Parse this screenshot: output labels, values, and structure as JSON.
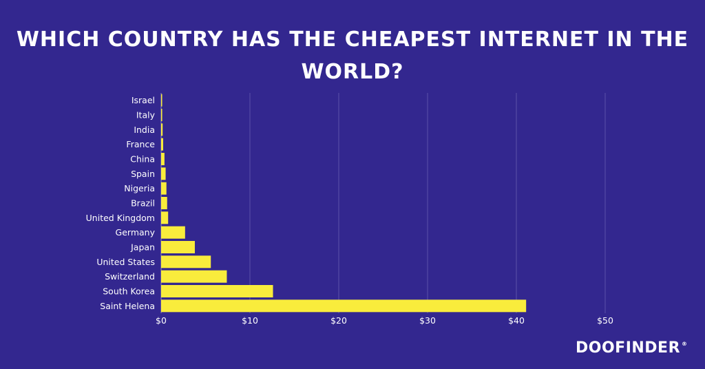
{
  "page": {
    "title": "WHICH COUNTRY HAS THE CHEAPEST INTERNET IN THE WORLD?",
    "brand": "DOOFINDER",
    "brand_mark": "®"
  },
  "colors": {
    "background": "#33278f",
    "bar": "#f9ec3c",
    "text": "#ffffff",
    "grid": "#5b52a8"
  },
  "chart_data": {
    "type": "bar",
    "orientation": "horizontal",
    "categories": [
      "Israel",
      "Italy",
      "India",
      "France",
      "China",
      "Spain",
      "Nigeria",
      "Brazil",
      "United Kingdom",
      "Germany",
      "Japan",
      "United States",
      "Switzerland",
      "South Korea",
      "Saint Helena"
    ],
    "values": [
      0.04,
      0.12,
      0.17,
      0.23,
      0.38,
      0.51,
      0.6,
      0.68,
      0.79,
      2.7,
      3.8,
      5.6,
      7.4,
      12.6,
      41.1
    ],
    "xlim": [
      0,
      50
    ],
    "xticks": [
      0,
      10,
      20,
      30,
      40,
      50
    ],
    "xtick_labels": [
      "$0",
      "$10",
      "$20",
      "$30",
      "$40",
      "$50"
    ],
    "grid": true,
    "legend": false
  }
}
